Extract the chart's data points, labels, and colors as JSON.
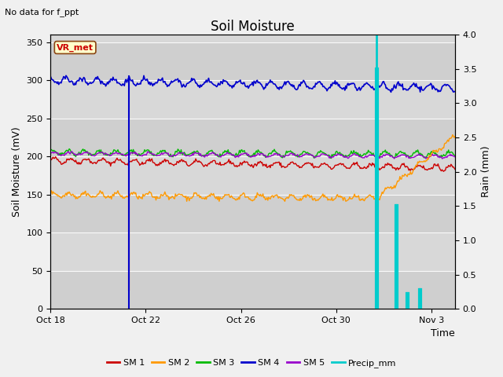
{
  "title": "Soil Moisture",
  "subtitle": "No data for f_ppt",
  "xlabel": "Time",
  "ylabel_left": "Soil Moisture (mV)",
  "ylabel_right": "Rain (mm)",
  "ylim_left": [
    0,
    360
  ],
  "ylim_right": [
    0,
    4.0
  ],
  "yticks_left": [
    0,
    50,
    100,
    150,
    200,
    250,
    300,
    350
  ],
  "yticks_right": [
    0.0,
    0.5,
    1.0,
    1.5,
    2.0,
    2.5,
    3.0,
    3.5,
    4.0
  ],
  "xlim": [
    0,
    17
  ],
  "xtick_labels": [
    "Oct 18",
    "Oct 22",
    "Oct 26",
    "Oct 30",
    "Nov 3"
  ],
  "xtick_positions": [
    0,
    4,
    8,
    12,
    16
  ],
  "fig_bg_color": "#f0f0f0",
  "plot_bg_color": "#d8d8d8",
  "legend_box_color": "#ffffcc",
  "legend_box_border": "#8B4513",
  "sm1_color": "#cc0000",
  "sm2_color": "#ff9900",
  "sm3_color": "#00bb00",
  "sm4_color": "#0000cc",
  "sm5_color": "#9900cc",
  "precip_color": "#00cccc",
  "sm1_base": 195,
  "sm2_base": 150,
  "sm3_base": 205,
  "sm4_base": 300,
  "sm5_base": 204,
  "dropout_day": 3.3,
  "precip_spike1_day": 13.7,
  "precip_spike1_val": 3.5,
  "precip_spike2_day": 14.5,
  "precip_spike2_val": 1.5,
  "precip_spike3_day": 15.0,
  "precip_spike3_val": 0.22,
  "precip_spike4_day": 15.5,
  "precip_spike4_val": 0.28,
  "cyan_vline_day": 13.7
}
